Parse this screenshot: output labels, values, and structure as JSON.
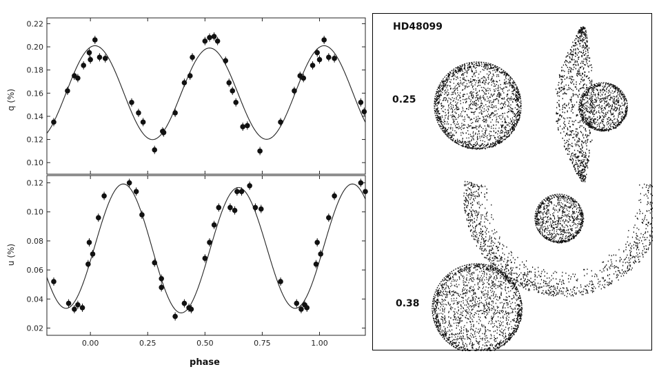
{
  "chart_data": [
    {
      "type": "scatter",
      "ylabel": "q (%)",
      "xlim": [
        -0.19,
        1.2
      ],
      "ylim": [
        0.09,
        0.225
      ],
      "yticks": [
        "0.10",
        "0.12",
        "0.14",
        "0.16",
        "0.18",
        "0.20",
        "0.22"
      ],
      "ytick_values": [
        0.1,
        0.12,
        0.14,
        0.16,
        0.18,
        0.2,
        0.22
      ],
      "xtick_values": [
        0.0,
        0.25,
        0.5,
        0.75,
        1.0
      ],
      "model": {
        "mean": 0.16,
        "amp1": 0.001,
        "phi1": 0.0,
        "amp2": 0.04,
        "phi2": 0.02
      },
      "points": [
        {
          "x": -0.16,
          "y": 0.135
        },
        {
          "x": -0.1,
          "y": 0.162
        },
        {
          "x": -0.07,
          "y": 0.175
        },
        {
          "x": -0.055,
          "y": 0.173
        },
        {
          "x": -0.03,
          "y": 0.184
        },
        {
          "x": -0.005,
          "y": 0.195
        },
        {
          "x": 0.0,
          "y": 0.189
        },
        {
          "x": 0.02,
          "y": 0.206
        },
        {
          "x": 0.04,
          "y": 0.191
        },
        {
          "x": 0.065,
          "y": 0.19
        },
        {
          "x": 0.18,
          "y": 0.152
        },
        {
          "x": 0.21,
          "y": 0.143
        },
        {
          "x": 0.23,
          "y": 0.135
        },
        {
          "x": 0.28,
          "y": 0.111
        },
        {
          "x": 0.315,
          "y": 0.127
        },
        {
          "x": 0.32,
          "y": 0.126
        },
        {
          "x": 0.37,
          "y": 0.143
        },
        {
          "x": 0.41,
          "y": 0.169
        },
        {
          "x": 0.435,
          "y": 0.175
        },
        {
          "x": 0.445,
          "y": 0.191
        },
        {
          "x": 0.5,
          "y": 0.205
        },
        {
          "x": 0.52,
          "y": 0.208
        },
        {
          "x": 0.54,
          "y": 0.209
        },
        {
          "x": 0.555,
          "y": 0.205
        },
        {
          "x": 0.59,
          "y": 0.188
        },
        {
          "x": 0.605,
          "y": 0.169
        },
        {
          "x": 0.62,
          "y": 0.162
        },
        {
          "x": 0.635,
          "y": 0.152
        },
        {
          "x": 0.665,
          "y": 0.131
        },
        {
          "x": 0.685,
          "y": 0.132
        },
        {
          "x": 0.74,
          "y": 0.11
        },
        {
          "x": 0.83,
          "y": 0.135
        },
        {
          "x": 0.89,
          "y": 0.162
        },
        {
          "x": 0.915,
          "y": 0.175
        },
        {
          "x": 0.93,
          "y": 0.173
        },
        {
          "x": 0.97,
          "y": 0.184
        },
        {
          "x": 0.99,
          "y": 0.195
        },
        {
          "x": 1.0,
          "y": 0.189
        },
        {
          "x": 1.02,
          "y": 0.206
        },
        {
          "x": 1.04,
          "y": 0.191
        },
        {
          "x": 1.065,
          "y": 0.19
        },
        {
          "x": 1.18,
          "y": 0.152
        },
        {
          "x": 1.195,
          "y": 0.144
        }
      ]
    },
    {
      "type": "scatter",
      "xlabel": "phase",
      "ylabel": "u (%)",
      "xlim": [
        -0.19,
        1.2
      ],
      "ylim": [
        0.015,
        0.125
      ],
      "yticks": [
        "0.02",
        "0.04",
        "0.06",
        "0.08",
        "0.10",
        "0.12"
      ],
      "ytick_values": [
        0.02,
        0.04,
        0.06,
        0.08,
        0.1,
        0.12
      ],
      "xticks": [
        "0.00",
        "0.25",
        "0.50",
        "0.75",
        "1.00"
      ],
      "xtick_values": [
        0.0,
        0.25,
        0.5,
        0.75,
        1.0
      ],
      "model": {
        "mean": 0.075,
        "amp1": 0.002,
        "phi1": 0.0,
        "amp2": 0.043,
        "phi2": 0.145
      },
      "points": [
        {
          "x": -0.16,
          "y": 0.052
        },
        {
          "x": -0.095,
          "y": 0.037
        },
        {
          "x": -0.07,
          "y": 0.033
        },
        {
          "x": -0.055,
          "y": 0.036
        },
        {
          "x": -0.035,
          "y": 0.034
        },
        {
          "x": -0.01,
          "y": 0.064
        },
        {
          "x": -0.005,
          "y": 0.079
        },
        {
          "x": 0.01,
          "y": 0.071
        },
        {
          "x": 0.035,
          "y": 0.096
        },
        {
          "x": 0.06,
          "y": 0.111
        },
        {
          "x": 0.17,
          "y": 0.12
        },
        {
          "x": 0.2,
          "y": 0.114
        },
        {
          "x": 0.225,
          "y": 0.098
        },
        {
          "x": 0.28,
          "y": 0.065
        },
        {
          "x": 0.31,
          "y": 0.054
        },
        {
          "x": 0.31,
          "y": 0.048
        },
        {
          "x": 0.37,
          "y": 0.028
        },
        {
          "x": 0.41,
          "y": 0.037
        },
        {
          "x": 0.43,
          "y": 0.034
        },
        {
          "x": 0.44,
          "y": 0.033
        },
        {
          "x": 0.5,
          "y": 0.068
        },
        {
          "x": 0.52,
          "y": 0.079
        },
        {
          "x": 0.54,
          "y": 0.091
        },
        {
          "x": 0.56,
          "y": 0.103
        },
        {
          "x": 0.61,
          "y": 0.103
        },
        {
          "x": 0.63,
          "y": 0.101
        },
        {
          "x": 0.64,
          "y": 0.114
        },
        {
          "x": 0.66,
          "y": 0.114
        },
        {
          "x": 0.695,
          "y": 0.118
        },
        {
          "x": 0.72,
          "y": 0.103
        },
        {
          "x": 0.745,
          "y": 0.102
        },
        {
          "x": 0.83,
          "y": 0.052
        },
        {
          "x": 0.9,
          "y": 0.037
        },
        {
          "x": 0.92,
          "y": 0.033
        },
        {
          "x": 0.935,
          "y": 0.036
        },
        {
          "x": 0.945,
          "y": 0.034
        },
        {
          "x": 0.985,
          "y": 0.064
        },
        {
          "x": 0.99,
          "y": 0.079
        },
        {
          "x": 1.005,
          "y": 0.071
        },
        {
          "x": 1.04,
          "y": 0.096
        },
        {
          "x": 1.065,
          "y": 0.111
        },
        {
          "x": 1.18,
          "y": 0.12
        },
        {
          "x": 1.2,
          "y": 0.114
        }
      ]
    }
  ],
  "model_panel": {
    "title": "HD48099",
    "phase_labels": [
      "0.25",
      "0.38"
    ]
  }
}
